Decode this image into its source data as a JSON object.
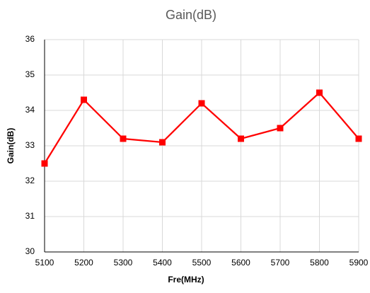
{
  "chart_data": {
    "type": "line",
    "title": "Gain(dB)",
    "x_label": "Fre(MHz)",
    "y_label": "Gain(dB)",
    "x": [
      5100,
      5200,
      5300,
      5400,
      5500,
      5600,
      5700,
      5800,
      5900
    ],
    "values": [
      32.5,
      34.3,
      33.2,
      33.1,
      34.2,
      33.2,
      33.5,
      34.5,
      33.2
    ],
    "color": "#ff0000",
    "xlim": [
      5100,
      5900
    ],
    "xticks": [
      5100,
      5200,
      5300,
      5400,
      5500,
      5600,
      5700,
      5800,
      5900
    ],
    "ylim": [
      30,
      36
    ],
    "yticks": [
      30,
      31,
      32,
      33,
      34,
      35,
      36
    ],
    "grid": true
  }
}
